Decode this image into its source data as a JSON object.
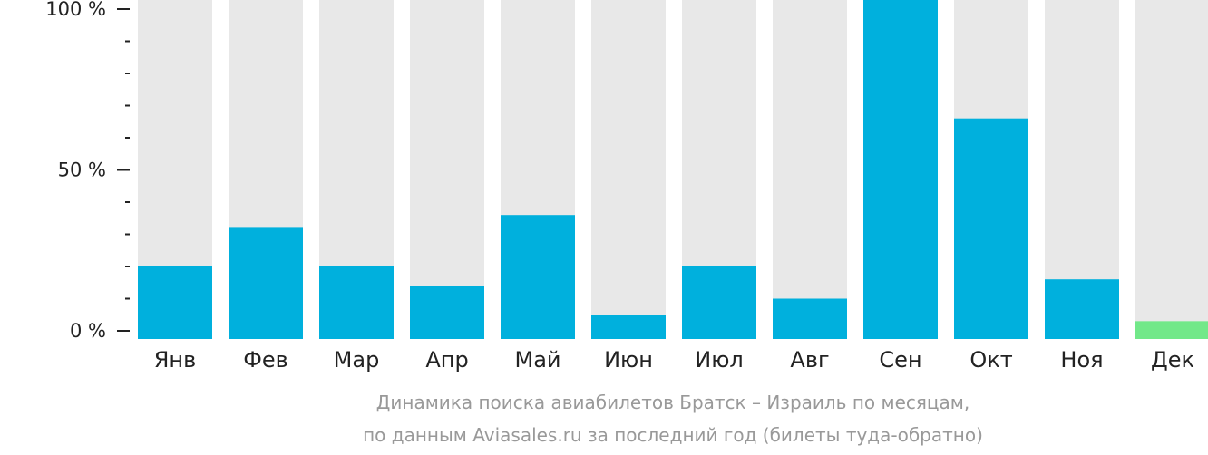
{
  "chart_data": {
    "type": "bar",
    "categories": [
      "Янв",
      "Фев",
      "Мар",
      "Апр",
      "Май",
      "Июн",
      "Июл",
      "Авг",
      "Сен",
      "Окт",
      "Ноя",
      "Дек"
    ],
    "values": [
      20,
      32,
      20,
      14,
      36,
      5,
      20,
      10,
      106,
      66,
      16,
      3
    ],
    "ylim": [
      0,
      100
    ],
    "y_ticks": [
      {
        "value": 0,
        "label": "0 %"
      },
      {
        "value": 50,
        "label": "50 %"
      },
      {
        "value": 100,
        "label": "100 %"
      }
    ],
    "minor_tick_step": 10,
    "highlight_index": 11,
    "grid": false,
    "legend": "none"
  },
  "colors": {
    "bar": "#00b0dd",
    "bar_highlight": "#72e889",
    "background_bar": "#e8e8e8",
    "axis": "#222222",
    "caption": "#999999"
  },
  "caption": {
    "line1": "Динамика поиска авиабилетов Братск – Израиль по месяцам,",
    "line2": "по данным Aviasales.ru за последний год (билеты туда-обратно)"
  }
}
